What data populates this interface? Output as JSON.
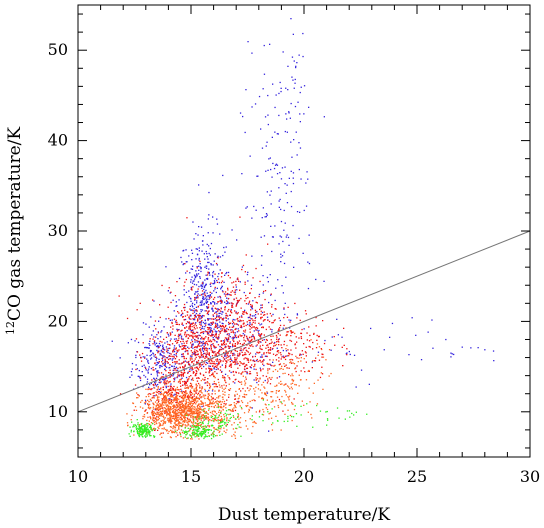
{
  "chart_data": {
    "type": "scatter",
    "xlabel": "Dust temperature/K",
    "ylabel_superscript": "12",
    "ylabel_main": "CO gas temperature/K",
    "xlim": [
      10,
      30
    ],
    "ylim": [
      5,
      55
    ],
    "xticks": [
      10,
      15,
      20,
      25,
      30
    ],
    "yticks": [
      10,
      20,
      30,
      40,
      50
    ],
    "grid": false,
    "reference_line": {
      "x": [
        10,
        30
      ],
      "y": [
        10,
        30
      ],
      "color": "#777777"
    },
    "series": [
      {
        "color": "#3322dd",
        "clusters": [
          {
            "cx": 13.6,
            "cy": 15.5,
            "sx": 0.6,
            "sy": 2.0,
            "n": 260
          },
          {
            "cx": 15.6,
            "cy": 22.0,
            "sx": 0.6,
            "sy": 4.0,
            "n": 420
          },
          {
            "cx": 16.5,
            "cy": 19.0,
            "sx": 1.2,
            "sy": 3.0,
            "n": 260
          },
          {
            "cx": 18.8,
            "cy": 33.0,
            "sx": 0.8,
            "sy": 8.0,
            "n": 170
          },
          {
            "cx": 19.6,
            "cy": 44.0,
            "sx": 0.3,
            "sy": 5.0,
            "n": 40
          },
          {
            "cx": 22.5,
            "cy": 17.5,
            "sx": 2.0,
            "sy": 2.0,
            "n": 30
          },
          {
            "cx": 26.8,
            "cy": 16.5,
            "sx": 0.8,
            "sy": 0.6,
            "n": 10
          }
        ]
      },
      {
        "color": "#ee1111",
        "clusters": [
          {
            "cx": 15.2,
            "cy": 16.5,
            "sx": 1.0,
            "sy": 3.0,
            "n": 700
          },
          {
            "cx": 16.8,
            "cy": 19.0,
            "sx": 1.0,
            "sy": 3.5,
            "n": 500
          },
          {
            "cx": 18.8,
            "cy": 17.5,
            "sx": 1.2,
            "sy": 2.0,
            "n": 260
          },
          {
            "cx": 14.2,
            "cy": 11.5,
            "sx": 0.6,
            "sy": 1.5,
            "n": 180
          }
        ]
      },
      {
        "color": "#ff6622",
        "clusters": [
          {
            "cx": 14.4,
            "cy": 10.0,
            "sx": 0.8,
            "sy": 1.3,
            "n": 900
          },
          {
            "cx": 16.0,
            "cy": 10.5,
            "sx": 0.8,
            "sy": 1.8,
            "n": 300
          },
          {
            "cx": 18.2,
            "cy": 11.5,
            "sx": 1.0,
            "sy": 1.5,
            "n": 140
          },
          {
            "cx": 19.5,
            "cy": 14.5,
            "sx": 0.8,
            "sy": 2.0,
            "n": 80
          }
        ]
      },
      {
        "color": "#33ee22",
        "clusters": [
          {
            "cx": 12.9,
            "cy": 8.0,
            "sx": 0.25,
            "sy": 0.4,
            "n": 160
          },
          {
            "cx": 15.4,
            "cy": 7.8,
            "sx": 0.4,
            "sy": 0.4,
            "n": 130
          },
          {
            "cx": 16.3,
            "cy": 9.0,
            "sx": 0.5,
            "sy": 0.7,
            "n": 70
          },
          {
            "cx": 19.5,
            "cy": 9.8,
            "sx": 1.2,
            "sy": 0.8,
            "n": 35
          },
          {
            "cx": 22.0,
            "cy": 9.6,
            "sx": 0.3,
            "sy": 0.4,
            "n": 8
          }
        ]
      }
    ]
  }
}
